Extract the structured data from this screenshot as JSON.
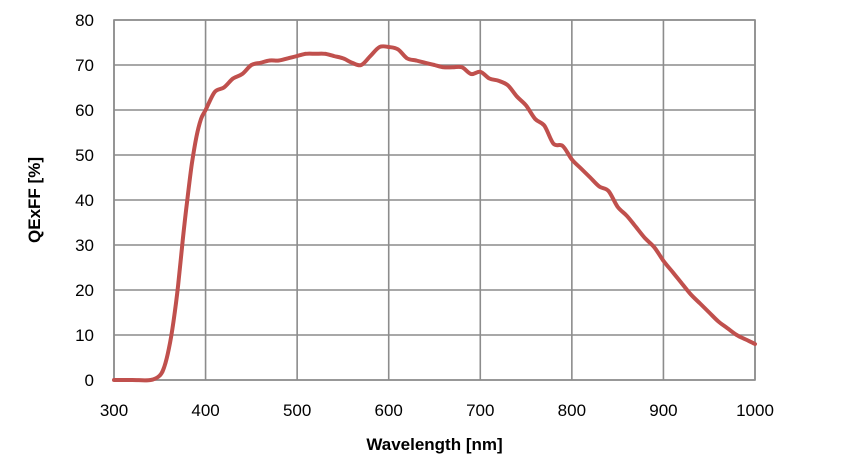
{
  "chart_data": {
    "type": "line",
    "title": "",
    "xlabel": "Wavelength [nm]",
    "ylabel": "QExFF [%]",
    "xlim": [
      300,
      1000
    ],
    "ylim": [
      0,
      80
    ],
    "x_ticks": [
      300,
      400,
      500,
      600,
      700,
      800,
      900,
      1000
    ],
    "y_ticks": [
      0,
      10,
      20,
      30,
      40,
      50,
      60,
      70,
      80
    ],
    "grid": true,
    "legend": "none",
    "series_color": "#c0504d",
    "series": [
      {
        "x": [
          300,
          320,
          340,
          350,
          355,
          360,
          365,
          370,
          375,
          380,
          385,
          390,
          395,
          400,
          410,
          420,
          430,
          440,
          450,
          460,
          470,
          480,
          490,
          500,
          510,
          520,
          530,
          540,
          550,
          560,
          570,
          580,
          590,
          600,
          610,
          620,
          630,
          640,
          650,
          660,
          670,
          680,
          690,
          700,
          710,
          720,
          730,
          740,
          750,
          760,
          770,
          780,
          790,
          800,
          810,
          820,
          830,
          840,
          850,
          860,
          870,
          880,
          890,
          900,
          910,
          920,
          930,
          940,
          950,
          960,
          970,
          980,
          990,
          1000
        ],
        "y": [
          0,
          0,
          0,
          1,
          3,
          7,
          13,
          21,
          31,
          40,
          48,
          54,
          58,
          60,
          64,
          65,
          67,
          68,
          70,
          70.5,
          71,
          71,
          71.5,
          72,
          72.5,
          72.5,
          72.5,
          72,
          71.5,
          70.5,
          70,
          72,
          74,
          74,
          73.5,
          71.5,
          71,
          70.5,
          70,
          69.5,
          69.5,
          69.5,
          68,
          68.5,
          67,
          66.5,
          65.5,
          63,
          61,
          58,
          56.5,
          52.5,
          52,
          49,
          47,
          45,
          43,
          42,
          38.5,
          36.5,
          34,
          31.5,
          29.5,
          26.5,
          24,
          21.5,
          19,
          17,
          15,
          13,
          11.5,
          10,
          9,
          8
        ]
      }
    ]
  }
}
